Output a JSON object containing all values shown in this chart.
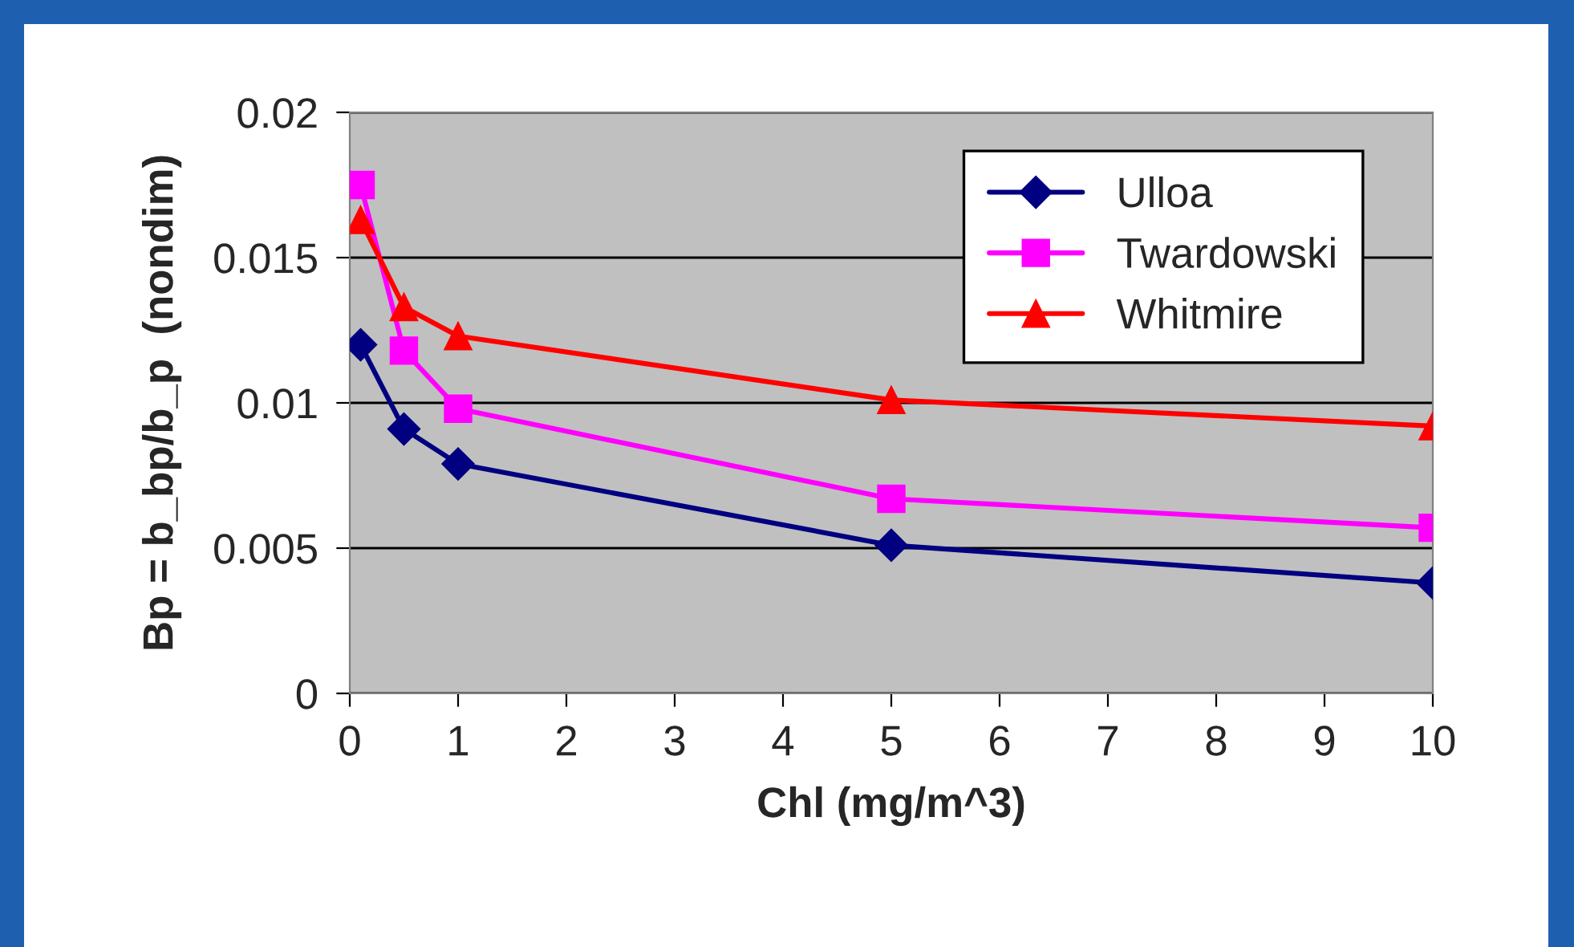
{
  "chart_data": {
    "type": "line",
    "xlabel": "Chl (mg/m^3)",
    "ylabel": "Bp = b_bp/b_p  (nondim)",
    "x": [
      0.1,
      0.5,
      1,
      5,
      10
    ],
    "series": [
      {
        "name": "Ulloa",
        "color": "#000080",
        "marker": "diamond",
        "values": [
          0.012,
          0.0091,
          0.0079,
          0.0051,
          0.0038
        ]
      },
      {
        "name": "Twardowski",
        "color": "#ff00ff",
        "marker": "square",
        "values": [
          0.0175,
          0.0118,
          0.0098,
          0.0067,
          0.0057
        ]
      },
      {
        "name": "Whitmire",
        "color": "#ff0000",
        "marker": "triangle",
        "values": [
          0.0163,
          0.0133,
          0.0123,
          0.0101,
          0.0092
        ]
      }
    ],
    "xlim": [
      0,
      10
    ],
    "xticks": [
      0,
      1,
      2,
      3,
      4,
      5,
      6,
      7,
      8,
      9,
      10
    ],
    "ylim": [
      0,
      0.02
    ],
    "yticks": [
      0,
      0.005,
      0.01,
      0.015,
      0.02
    ],
    "grid": "y",
    "legend": "top right",
    "line_style": "solid"
  }
}
